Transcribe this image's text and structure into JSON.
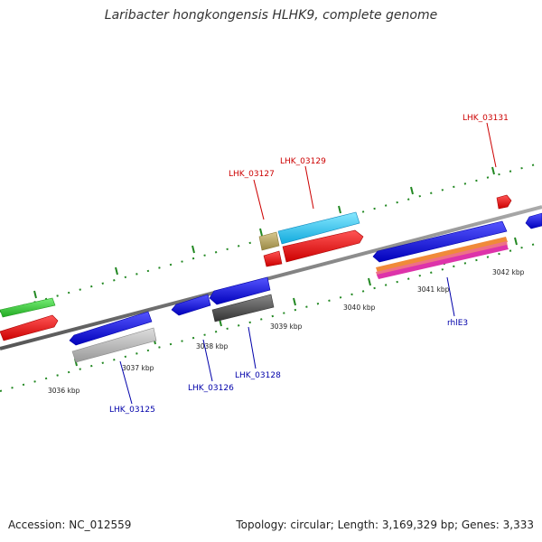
{
  "title": "Laribacter hongkongensis HLHK9, complete genome",
  "footer": {
    "accession": "Accession: NC_012559",
    "summary": "Topology: circular; Length: 3,169,329 bp; Genes: 3,333"
  },
  "ticks": [
    "3036 kbp",
    "3037 kbp",
    "3038 kbp",
    "3039 kbp",
    "3040 kbp",
    "3041 kbp",
    "3042 kbp"
  ],
  "gene_labels": {
    "forward": [
      "LHK_03127",
      "LHK_03129",
      "LHK_03131"
    ],
    "reverse": [
      "LHK_03125",
      "LHK_03126",
      "LHK_03128",
      "rhlE3"
    ]
  },
  "colors": {
    "forward_label": "#cc0000",
    "reverse_label": "#0000aa",
    "backbone": "#777777",
    "tick_mark": "#228822",
    "blue_feature": "#1a1ae6",
    "red_feature": "#ee1111",
    "cyan_feature": "#33ccee",
    "green_feature": "#33cc33",
    "grey_feature": "#bbbbbb",
    "dark_feature": "#555555",
    "tan_feature": "#b8a36a"
  }
}
